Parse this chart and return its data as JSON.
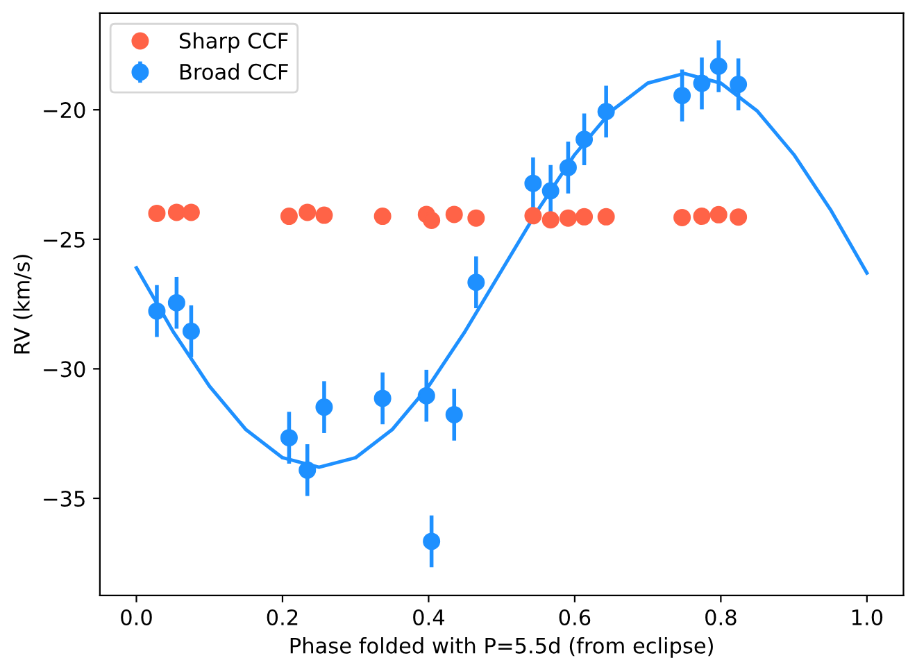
{
  "chart_data": {
    "type": "scatter",
    "xlabel": "Phase folded with P=5.5d (from eclipse)",
    "ylabel": "RV (km/s)",
    "xlim": [
      -0.05,
      1.05
    ],
    "ylim": [
      -38.75,
      -16.27
    ],
    "xticks": [
      {
        "value": 0.0,
        "label": "0.0"
      },
      {
        "value": 0.2,
        "label": "0.2"
      },
      {
        "value": 0.4,
        "label": "0.4"
      },
      {
        "value": 0.6,
        "label": "0.6"
      },
      {
        "value": 0.8,
        "label": "0.8"
      },
      {
        "value": 1.0,
        "label": "1.0"
      }
    ],
    "yticks": [
      {
        "value": -35,
        "label": "−35"
      },
      {
        "value": -30,
        "label": "−30"
      },
      {
        "value": -25,
        "label": "−25"
      },
      {
        "value": -20,
        "label": "−20"
      }
    ],
    "grid": false,
    "legend": "top left",
    "marker": "circle",
    "series": [
      {
        "name": "Sharp CCF",
        "color": "#ff6347",
        "x": [
          0.028,
          0.055,
          0.075,
          0.209,
          0.234,
          0.257,
          0.337,
          0.397,
          0.404,
          0.435,
          0.465,
          0.543,
          0.567,
          0.591,
          0.613,
          0.643,
          0.747,
          0.774,
          0.797,
          0.824
        ],
        "values": [
          -24.0,
          -23.96,
          -23.96,
          -24.11,
          -23.96,
          -24.07,
          -24.11,
          -24.04,
          -24.27,
          -24.04,
          -24.18,
          -24.09,
          -24.25,
          -24.18,
          -24.13,
          -24.13,
          -24.16,
          -24.11,
          -24.05,
          -24.14
        ]
      },
      {
        "name": "Broad CCF",
        "color": "#1e90ff",
        "x": [
          0.028,
          0.055,
          0.075,
          0.209,
          0.234,
          0.257,
          0.337,
          0.397,
          0.404,
          0.435,
          0.465,
          0.543,
          0.567,
          0.591,
          0.613,
          0.643,
          0.747,
          0.774,
          0.797,
          0.824
        ],
        "values": [
          -27.77,
          -27.45,
          -28.55,
          -32.66,
          -33.91,
          -31.48,
          -31.14,
          -31.04,
          -36.66,
          -31.77,
          -26.66,
          -22.84,
          -23.13,
          -22.23,
          -21.14,
          -20.07,
          -19.45,
          -18.98,
          -18.32,
          -19.02
        ],
        "errors": [
          1.0,
          1.0,
          1.0,
          1.0,
          1.0,
          1.0,
          1.0,
          1.0,
          1.0,
          1.0,
          1.0,
          1.0,
          1.0,
          1.0,
          1.0,
          1.0,
          1.0,
          1.0,
          1.0,
          1.0
        ]
      },
      {
        "type": "line",
        "marker": "none",
        "color": "#1e90ff",
        "x": [
          0.0,
          0.05,
          0.1,
          0.15,
          0.2,
          0.25,
          0.3,
          0.35,
          0.4,
          0.45,
          0.5,
          0.55,
          0.6,
          0.65,
          0.7,
          0.75,
          0.8,
          0.85,
          0.9,
          0.95,
          1.0
        ],
        "values": [
          -26.1,
          -28.55,
          -30.67,
          -32.35,
          -33.43,
          -33.8,
          -33.43,
          -32.35,
          -30.67,
          -28.55,
          -26.2,
          -23.85,
          -21.73,
          -20.05,
          -18.97,
          -18.6,
          -18.97,
          -20.05,
          -21.73,
          -23.85,
          -26.3
        ]
      }
    ]
  }
}
